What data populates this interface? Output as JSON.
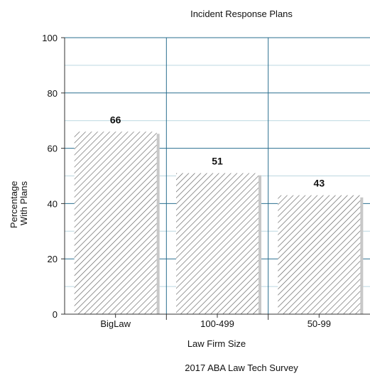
{
  "chart_data": {
    "type": "bar",
    "title": "Incident Response Plans",
    "xlabel": "Law Firm Size",
    "ylabel": [
      "Percentage",
      "With Plans"
    ],
    "caption": "2017 ABA Law Tech Survey",
    "categories": [
      "BigLaw",
      "100-499",
      "50-99"
    ],
    "values": [
      66,
      51,
      43
    ],
    "data_labels": [
      "66",
      "51",
      "43"
    ],
    "ylim": [
      0,
      100
    ],
    "yticks": [
      0,
      20,
      40,
      60,
      80,
      100
    ],
    "grid": "on",
    "bar_fill": "diagonal hatch",
    "colors": {
      "axis": "#333333",
      "grid_major": "#2a6f8f",
      "grid_minor": "#bcd7e0",
      "hatch": "#555555",
      "bar_shadow": "#c8c8c8"
    }
  }
}
